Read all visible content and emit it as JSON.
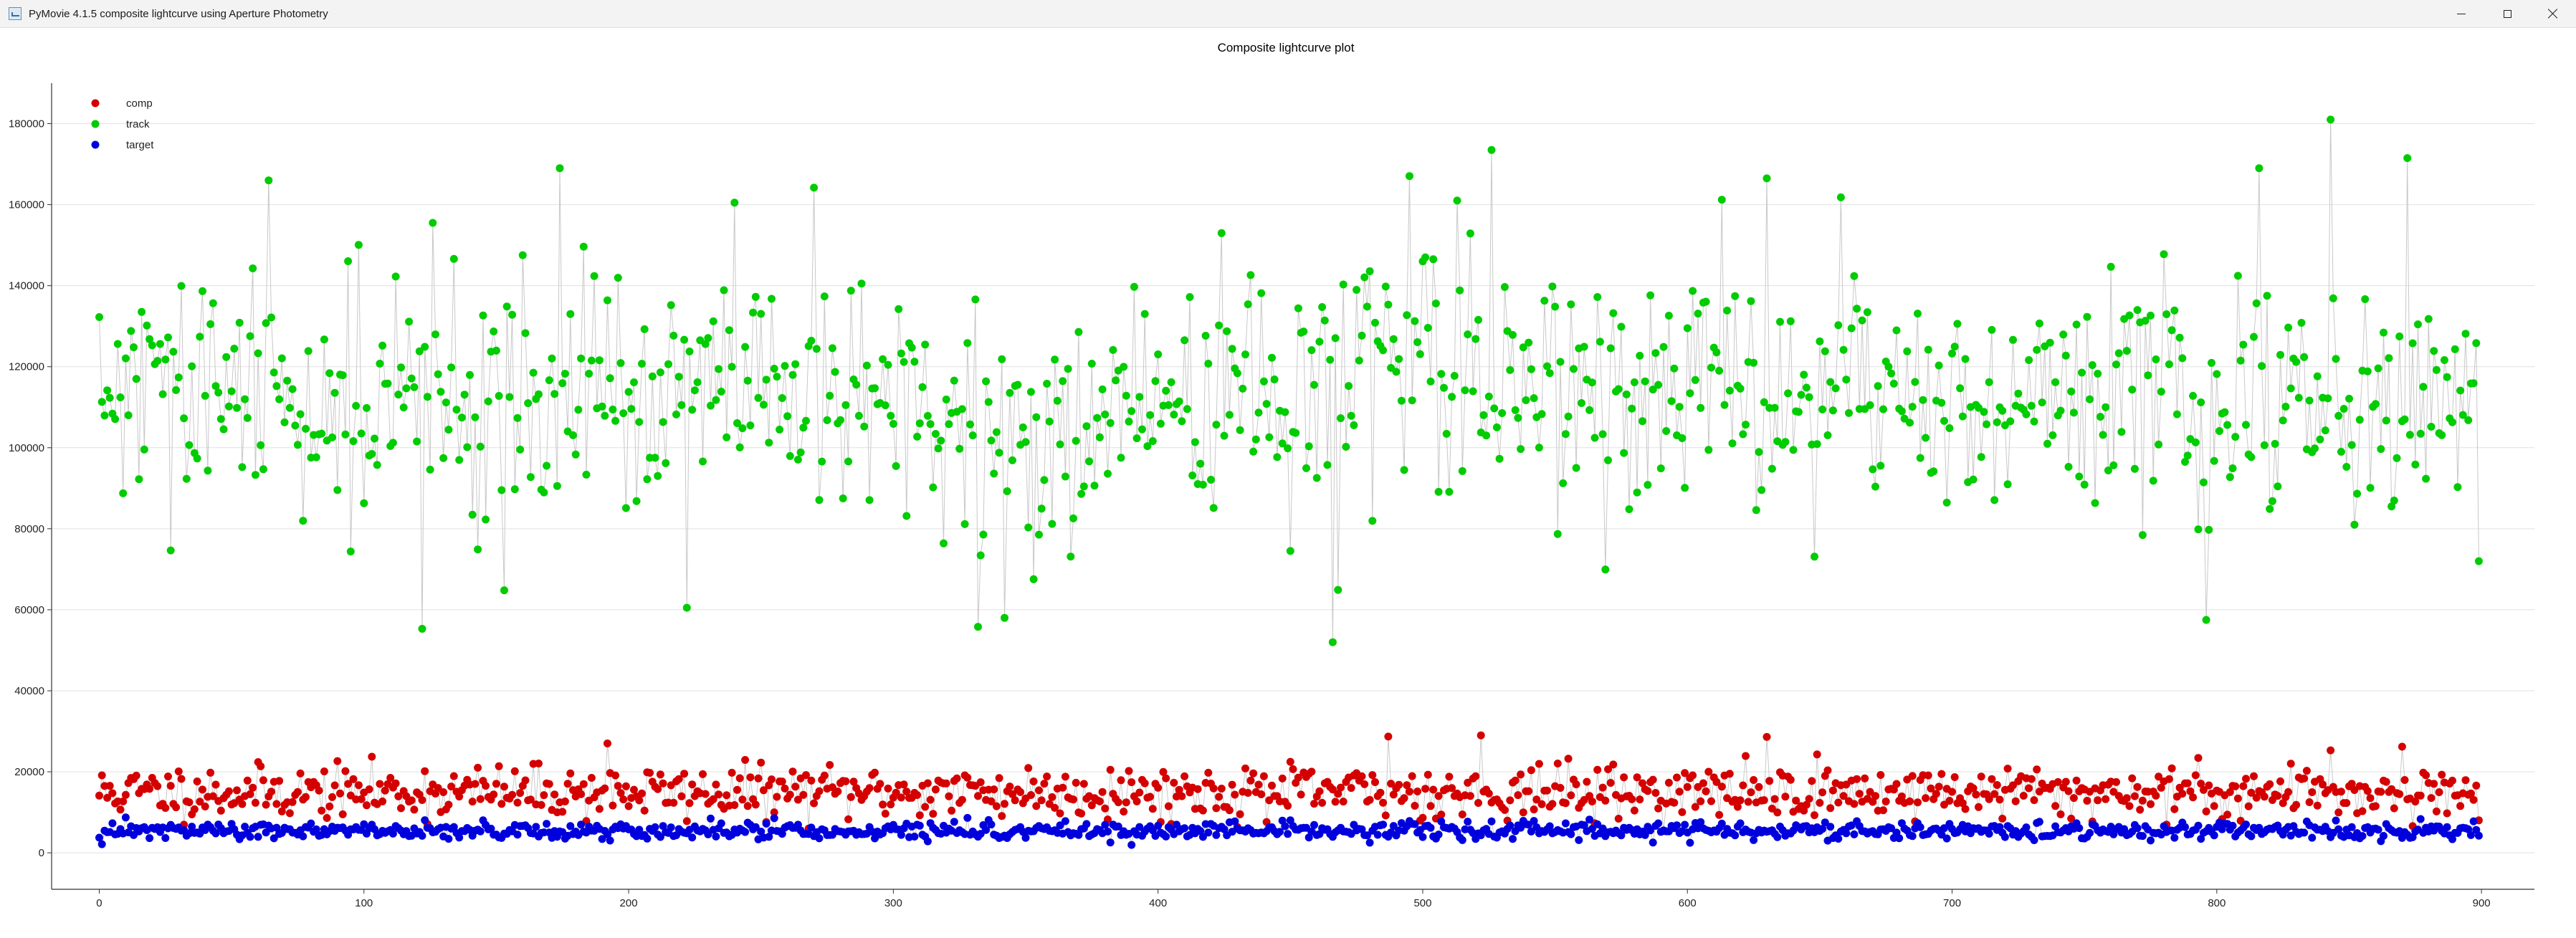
{
  "window": {
    "title": "PyMovie 4.1.5 composite lightcurve using Aperture Photometry",
    "controls": [
      "minimize",
      "maximize",
      "close"
    ]
  },
  "chart_data": {
    "type": "scatter",
    "title": "Composite lightcurve plot",
    "xlabel": "",
    "ylabel": "",
    "xlim": [
      -18,
      920
    ],
    "ylim": [
      -9000,
      190000
    ],
    "x_ticks": [
      0,
      100,
      200,
      300,
      400,
      500,
      600,
      700,
      800,
      900
    ],
    "y_ticks": [
      0,
      20000,
      40000,
      60000,
      80000,
      100000,
      120000,
      140000,
      160000,
      180000
    ],
    "grid": "horizontal",
    "legend_placement": "top-left",
    "x_range": [
      0,
      899
    ],
    "connecting_line_color": "#c8c8c8",
    "series": [
      {
        "name": "comp",
        "color": "#d40000",
        "mean": 15000,
        "spread": 4000,
        "range": [
          5000,
          29000
        ],
        "peaks": [
          [
            487,
            28700
          ],
          [
            522,
            29000
          ],
          [
            630,
            28600
          ],
          [
            192,
            27000
          ],
          [
            870,
            26200
          ],
          [
            843,
            25300
          ]
        ]
      },
      {
        "name": "track",
        "color": "#00cc00",
        "mean": 112000,
        "spread": 20000,
        "range": [
          52000,
          181000
        ],
        "peaks": [
          [
            843,
            181000
          ],
          [
            526,
            173500
          ],
          [
            872,
            171500
          ],
          [
            174,
            169000
          ],
          [
            816,
            169000
          ],
          [
            64,
            166000
          ],
          [
            630,
            166500
          ],
          [
            270,
            164200
          ],
          [
            658,
            161800
          ],
          [
            513,
            161000
          ],
          [
            240,
            160500
          ],
          [
            126,
            155500
          ]
        ],
        "troughs": [
          [
            466,
            52000
          ],
          [
            122,
            55300
          ],
          [
            796,
            57500
          ],
          [
            222,
            60500
          ],
          [
            332,
            55800
          ],
          [
            342,
            58000
          ],
          [
            153,
            64800
          ],
          [
            468,
            64900
          ],
          [
            899,
            72000
          ]
        ]
      },
      {
        "name": "target",
        "color": "#0000dd",
        "mean": 5400,
        "spread": 1300,
        "range": [
          1500,
          9000
        ]
      }
    ]
  }
}
